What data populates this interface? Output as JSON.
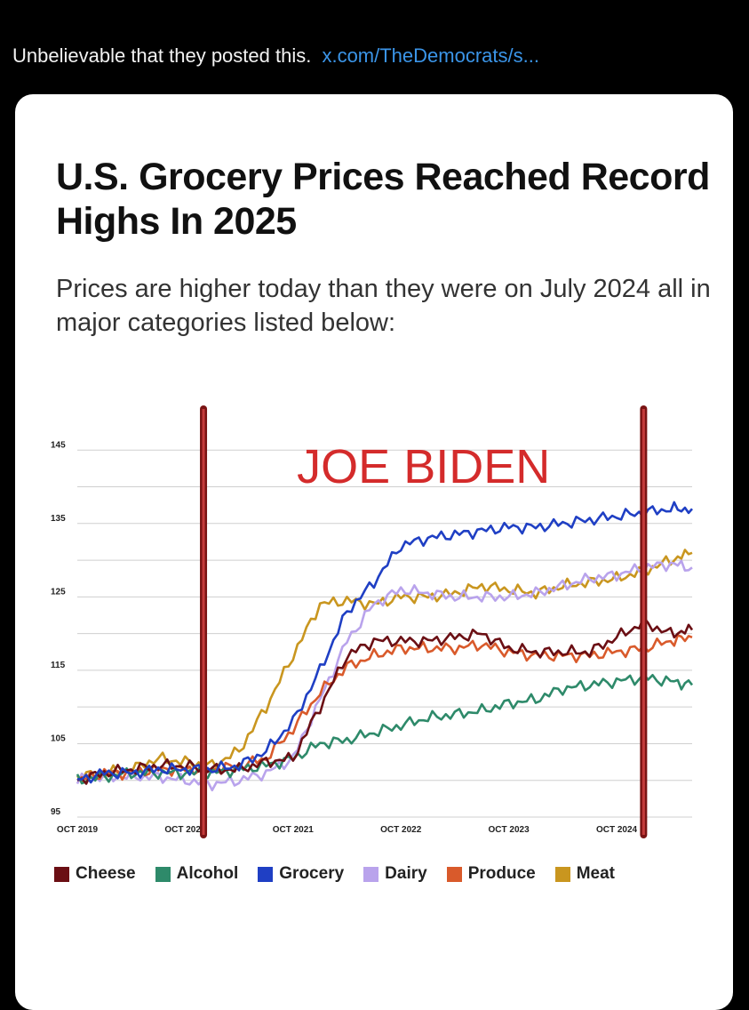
{
  "post": {
    "text": "Unbelievable that they posted this.",
    "link": "x.com/TheDemocrats/s..."
  },
  "chart_data": {
    "type": "line",
    "title": "U.S. Grocery Prices Reached Record Highs In 2025",
    "subtitle": "Prices are higher today than they were on July 2024 all in major categories listed below:",
    "annotation": "JOE BIDEN",
    "annotation_color": "#d42b2b",
    "marker_color": "#7a1414",
    "marker_lines_x": [
      2020.92,
      2025.0
    ],
    "xlim": [
      2019.75,
      2025.45
    ],
    "ylim": [
      95,
      146
    ],
    "yticks": [
      95,
      105,
      115,
      125,
      135,
      145
    ],
    "xtick_values": [
      2019.75,
      2020.75,
      2021.75,
      2022.75,
      2023.75,
      2024.75
    ],
    "xtick_labels": [
      "OCT 2019",
      "OCT 2020",
      "OCT 2021",
      "OCT 2022",
      "OCT 2023",
      "OCT 2024"
    ],
    "grid": "horizontal",
    "legend_position": "bottom",
    "x": [
      2019.75,
      2020.0,
      2020.25,
      2020.5,
      2020.75,
      2021.0,
      2021.25,
      2021.5,
      2021.75,
      2022.0,
      2022.25,
      2022.5,
      2022.75,
      2023.0,
      2023.25,
      2023.5,
      2023.75,
      2024.0,
      2024.25,
      2024.5,
      2024.75,
      2025.0,
      2025.25,
      2025.45
    ],
    "series": [
      {
        "name": "Cheese",
        "color": "#6b0f14",
        "values": [
          100,
          101,
          101.5,
          102,
          102,
          101.5,
          101.5,
          102.5,
          103,
          110,
          117,
          119,
          119,
          119,
          119.5,
          120,
          118,
          117.5,
          117.5,
          117.5,
          119.5,
          121.5,
          120,
          120.5
        ]
      },
      {
        "name": "Alcohol",
        "color": "#2e8a6a",
        "values": [
          100,
          100.5,
          101,
          101,
          101,
          101,
          101.5,
          102,
          103,
          105,
          105.5,
          106.5,
          107.5,
          108.5,
          109,
          109.5,
          110.5,
          111,
          112.5,
          113,
          113.5,
          114,
          113.5,
          113
        ]
      },
      {
        "name": "Grocery",
        "color": "#1f3fc4",
        "values": [
          100,
          101,
          101,
          101.5,
          101.5,
          101.5,
          102,
          104,
          108,
          115,
          123,
          127,
          132,
          133,
          133.5,
          134,
          134.5,
          134.5,
          135,
          135.5,
          136,
          136.5,
          137,
          137
        ]
      },
      {
        "name": "Dairy",
        "color": "#b9a3ec",
        "values": [
          100,
          100.5,
          100.5,
          100.5,
          100,
          99.5,
          100,
          101,
          103,
          111,
          119,
          124,
          126,
          125.5,
          125,
          125,
          125,
          125.5,
          126.5,
          127.5,
          128,
          129,
          129.5,
          129
        ]
      },
      {
        "name": "Produce",
        "color": "#d95a2b",
        "values": [
          100,
          101,
          101,
          101.5,
          101.5,
          101.5,
          102,
          103,
          107,
          112,
          115.5,
          117,
          118,
          118,
          118,
          118.5,
          117.5,
          117,
          117,
          117,
          117.5,
          118,
          119,
          119.5
        ]
      },
      {
        "name": "Meat",
        "color": "#c9961f",
        "values": [
          100.5,
          101,
          101.5,
          103,
          102.5,
          102,
          104,
          110,
          117,
          124,
          124.5,
          124,
          125,
          125,
          125.5,
          126.5,
          126,
          125.5,
          126.5,
          127,
          127.5,
          128.5,
          130,
          131
        ]
      }
    ]
  }
}
